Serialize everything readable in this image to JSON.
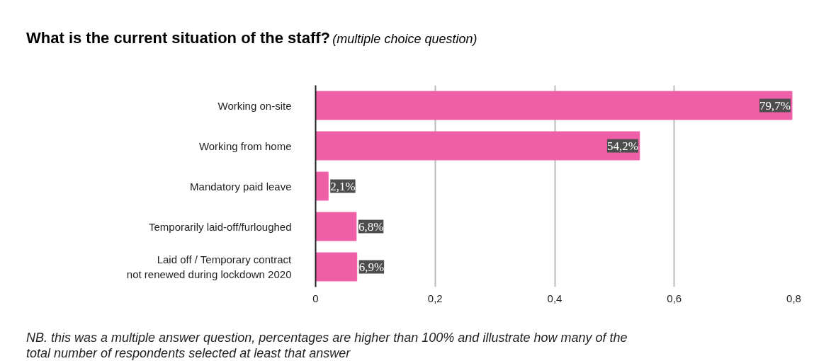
{
  "chart_data": {
    "type": "bar",
    "orientation": "horizontal",
    "title": "What is the current situation of the staff?",
    "subtitle": "(multiple choice question)",
    "categories": [
      "Working on-site",
      "Working from home",
      "Mandatory paid leave",
      "Temporarily laid-off/furloughed",
      "Laid off / Temporary contract\nnot renewed during lockdown 2020"
    ],
    "values": [
      0.797,
      0.542,
      0.021,
      0.068,
      0.069
    ],
    "value_labels": [
      "79,7%",
      "54,2%",
      "2,1%",
      "6,8%",
      "6,9%"
    ],
    "color": "#ef5fa7",
    "xlim": [
      0,
      0.8
    ],
    "xticks": [
      0,
      {
        "value": 0.2,
        "label": "0,2"
      },
      {
        "value": 0.4,
        "label": "0,4"
      },
      {
        "value": 0.6,
        "label": "0,6"
      },
      {
        "value": 0.8,
        "label": "0,8"
      }
    ],
    "grid": "x",
    "annotations": [
      "NB. this was a multiple answer question, percentages are higher than 100% and illustrate how many of the\ntotal number of respondents selected at least that answer"
    ]
  }
}
